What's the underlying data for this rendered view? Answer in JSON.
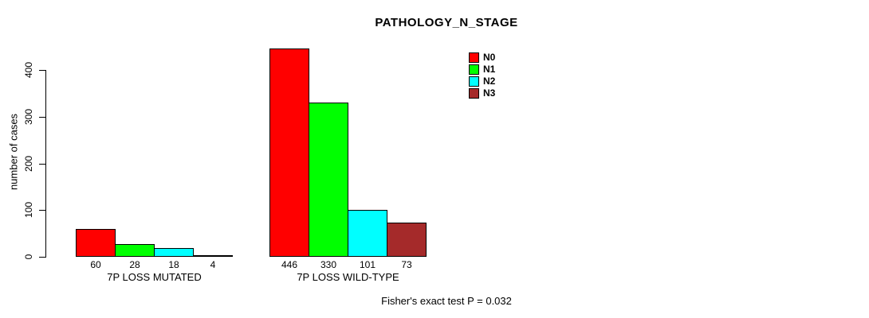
{
  "chart_data": {
    "type": "bar",
    "title": "PATHOLOGY_N_STAGE",
    "ylabel": "number of cases",
    "xlabel": "",
    "groups": [
      "7P LOSS MUTATED",
      "7P LOSS WILD-TYPE"
    ],
    "series": [
      {
        "name": "N0",
        "color": "#ff0000",
        "values": [
          60,
          446
        ]
      },
      {
        "name": "N1",
        "color": "#00ff00",
        "values": [
          28,
          330
        ]
      },
      {
        "name": "N2",
        "color": "#00ffff",
        "values": [
          18,
          101
        ]
      },
      {
        "name": "N3",
        "color": "#a52a2a",
        "values": [
          4,
          73
        ]
      }
    ],
    "bar_value_labels": [
      [
        "60",
        "28",
        "18",
        "4"
      ],
      [
        "446",
        "330",
        "101",
        "73"
      ]
    ],
    "yticks": [
      0,
      100,
      200,
      300,
      400
    ],
    "ylim": [
      0,
      450
    ],
    "grid": false,
    "legend_position": "top-right",
    "annotation": "Fisher's exact test P = 0.032",
    "colors": {
      "background": "#ffffff",
      "axis": "#000000",
      "text": "#000000"
    }
  }
}
